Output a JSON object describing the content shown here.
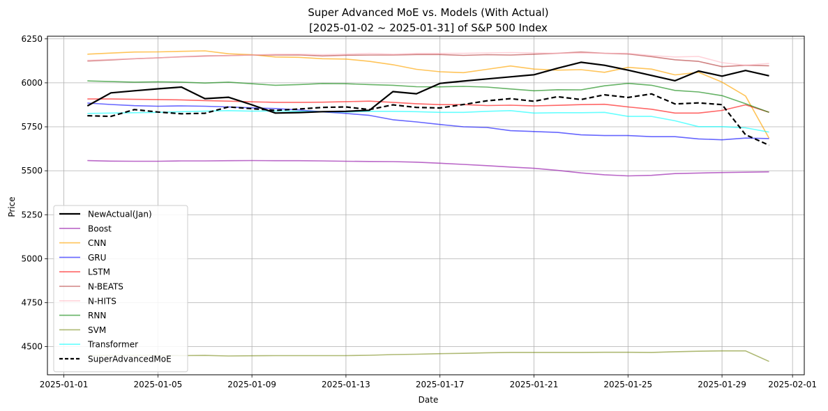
{
  "chart_data": {
    "type": "line",
    "title_lines": [
      "Super Advanced MoE vs. Models (With Actual)",
      "[2025-01-02 ~ 2025-01-31] of S&P 500 Index"
    ],
    "xlabel": "Date",
    "ylabel": "Price",
    "grid": true,
    "legend_position": "lower-left",
    "xlim_day": [
      0.3,
      32.5
    ],
    "ylim": [
      4340,
      6265
    ],
    "x_ticks": [
      {
        "day": 1,
        "label": "2025-01-01"
      },
      {
        "day": 5,
        "label": "2025-01-05"
      },
      {
        "day": 9,
        "label": "2025-01-09"
      },
      {
        "day": 13,
        "label": "2025-01-13"
      },
      {
        "day": 17,
        "label": "2025-01-17"
      },
      {
        "day": 21,
        "label": "2025-01-21"
      },
      {
        "day": 25,
        "label": "2025-01-25"
      },
      {
        "day": 29,
        "label": "2025-01-29"
      },
      {
        "day": 32,
        "label": "2025-02-01"
      }
    ],
    "y_ticks": [
      4500,
      4750,
      5000,
      5250,
      5500,
      5750,
      6000,
      6250
    ],
    "x_days": [
      2,
      3,
      4,
      5,
      6,
      7,
      8,
      9,
      10,
      11,
      12,
      13,
      14,
      15,
      16,
      17,
      18,
      19,
      20,
      21,
      22,
      23,
      24,
      25,
      26,
      27,
      28,
      29,
      30,
      31
    ],
    "series": [
      {
        "name": "NewActual(Jan)",
        "color": "#000000",
        "width": 2.2,
        "dash": "",
        "opacity": 1,
        "values": [
          5869,
          5943,
          5955,
          5966,
          5976,
          5910,
          5918,
          5875,
          5828,
          5831,
          5836,
          5838,
          5844,
          5950,
          5938,
          5997,
          6010,
          6022,
          6034,
          6046,
          6083,
          6117,
          6100,
          6072,
          6042,
          6012,
          6067,
          6038,
          6070,
          6040
        ]
      },
      {
        "name": "Boost",
        "color": "#9c27b0",
        "width": 1.6,
        "dash": "",
        "opacity": 0.7,
        "values": [
          5558,
          5555,
          5554,
          5554,
          5556,
          5556,
          5557,
          5558,
          5557,
          5557,
          5556,
          5554,
          5553,
          5552,
          5549,
          5543,
          5536,
          5529,
          5521,
          5514,
          5502,
          5488,
          5477,
          5471,
          5474,
          5484,
          5487,
          5490,
          5492,
          5494
        ]
      },
      {
        "name": "CNN",
        "color": "#ffa500",
        "width": 1.6,
        "dash": "",
        "opacity": 0.65,
        "values": [
          6163,
          6169,
          6175,
          6176,
          6179,
          6182,
          6165,
          6160,
          6147,
          6145,
          6137,
          6135,
          6122,
          6103,
          6077,
          6063,
          6058,
          6077,
          6096,
          6078,
          6072,
          6075,
          6060,
          6088,
          6078,
          6045,
          6060,
          6004,
          5925,
          5685
        ]
      },
      {
        "name": "GRU",
        "color": "#0000ff",
        "width": 1.6,
        "dash": "",
        "opacity": 0.6,
        "values": [
          5885,
          5877,
          5870,
          5867,
          5869,
          5867,
          5863,
          5858,
          5854,
          5846,
          5835,
          5826,
          5815,
          5790,
          5778,
          5763,
          5750,
          5746,
          5728,
          5723,
          5718,
          5704,
          5700,
          5700,
          5694,
          5694,
          5681,
          5676,
          5686,
          5683
        ]
      },
      {
        "name": "LSTM",
        "color": "#ff0000",
        "width": 1.6,
        "dash": "",
        "opacity": 0.6,
        "values": [
          5908,
          5908,
          5906,
          5905,
          5903,
          5899,
          5896,
          5892,
          5889,
          5889,
          5890,
          5893,
          5896,
          5889,
          5881,
          5876,
          5876,
          5871,
          5873,
          5869,
          5872,
          5876,
          5878,
          5863,
          5850,
          5828,
          5828,
          5843,
          5875,
          5833
        ]
      },
      {
        "name": "N-BEATS",
        "color": "#b03030",
        "width": 1.6,
        "dash": "",
        "opacity": 0.6,
        "values": [
          6124,
          6130,
          6137,
          6142,
          6148,
          6153,
          6155,
          6158,
          6158,
          6159,
          6153,
          6157,
          6158,
          6158,
          6161,
          6161,
          6156,
          6160,
          6158,
          6163,
          6168,
          6175,
          6168,
          6164,
          6149,
          6131,
          6122,
          6092,
          6100,
          6097
        ]
      },
      {
        "name": "N-HITS",
        "color": "#ffb6c1",
        "width": 1.6,
        "dash": "",
        "opacity": 0.6,
        "values": [
          6128,
          6133,
          6137,
          6142,
          6147,
          6150,
          6155,
          6158,
          6163,
          6163,
          6160,
          6163,
          6167,
          6163,
          6167,
          6167,
          6168,
          6170,
          6172,
          6170,
          6168,
          6170,
          6168,
          6168,
          6155,
          6147,
          6150,
          6115,
          6100,
          6110
        ]
      },
      {
        "name": "RNN",
        "color": "#008000",
        "width": 1.6,
        "dash": "",
        "opacity": 0.6,
        "values": [
          6011,
          6007,
          6004,
          6006,
          6004,
          5999,
          6004,
          5995,
          5986,
          5990,
          5996,
          5995,
          5990,
          5986,
          5978,
          5977,
          5980,
          5976,
          5965,
          5955,
          5961,
          5960,
          5983,
          5997,
          5986,
          5957,
          5948,
          5927,
          5881,
          5832
        ]
      },
      {
        "name": "SVM",
        "color": "#6b7f00",
        "width": 1.6,
        "dash": "",
        "opacity": 0.55,
        "values": [
          4449,
          4450,
          4450,
          4450,
          4449,
          4450,
          4447,
          4448,
          4449,
          4449,
          4449,
          4449,
          4451,
          4455,
          4457,
          4460,
          4462,
          4465,
          4467,
          4467,
          4467,
          4467,
          4468,
          4468,
          4467,
          4471,
          4474,
          4476,
          4476,
          4416
        ]
      },
      {
        "name": "Transformer",
        "color": "#00ffff",
        "width": 1.6,
        "dash": "",
        "opacity": 0.6,
        "values": [
          5826,
          5828,
          5830,
          5832,
          5836,
          5839,
          5842,
          5839,
          5840,
          5838,
          5836,
          5834,
          5838,
          5838,
          5836,
          5832,
          5832,
          5838,
          5842,
          5828,
          5830,
          5830,
          5832,
          5809,
          5809,
          5784,
          5751,
          5751,
          5744,
          5720
        ]
      },
      {
        "name": "SuperAdvancedMoE",
        "color": "#000000",
        "width": 2.2,
        "dash": "7,4",
        "opacity": 1,
        "values": [
          5813,
          5809,
          5848,
          5834,
          5824,
          5827,
          5863,
          5853,
          5843,
          5851,
          5860,
          5863,
          5848,
          5875,
          5860,
          5857,
          5877,
          5898,
          5910,
          5895,
          5921,
          5905,
          5932,
          5917,
          5937,
          5880,
          5886,
          5876,
          5705,
          5645
        ]
      }
    ]
  }
}
